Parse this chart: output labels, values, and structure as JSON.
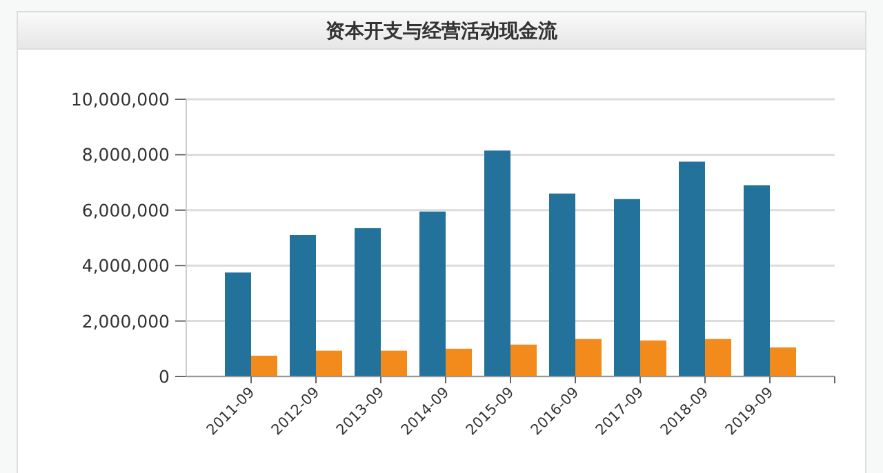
{
  "chart_data": {
    "type": "bar",
    "title": "资本开支与经营活动现金流",
    "categories": [
      "2011-09",
      "2012-09",
      "2013-09",
      "2014-09",
      "2015-09",
      "2016-09",
      "2017-09",
      "2018-09",
      "2019-09"
    ],
    "series": [
      {
        "color": "#23729c",
        "values": [
          3750000,
          5100000,
          5350000,
          5950000,
          8150000,
          6600000,
          6400000,
          7750000,
          6900000
        ]
      },
      {
        "color": "#f28a1c",
        "values": [
          750000,
          930000,
          930000,
          1000000,
          1150000,
          1350000,
          1300000,
          1350000,
          1050000
        ]
      }
    ],
    "ylim": [
      0,
      10000000
    ],
    "yticks": [
      {
        "value": 0,
        "label": "0"
      },
      {
        "value": 2000000,
        "label": "2,000,000"
      },
      {
        "value": 4000000,
        "label": "4,000,000"
      },
      {
        "value": 6000000,
        "label": "6,000,000"
      },
      {
        "value": 8000000,
        "label": "8,000,000"
      },
      {
        "value": 10000000,
        "label": "10,000,000"
      }
    ],
    "grid": "y"
  }
}
